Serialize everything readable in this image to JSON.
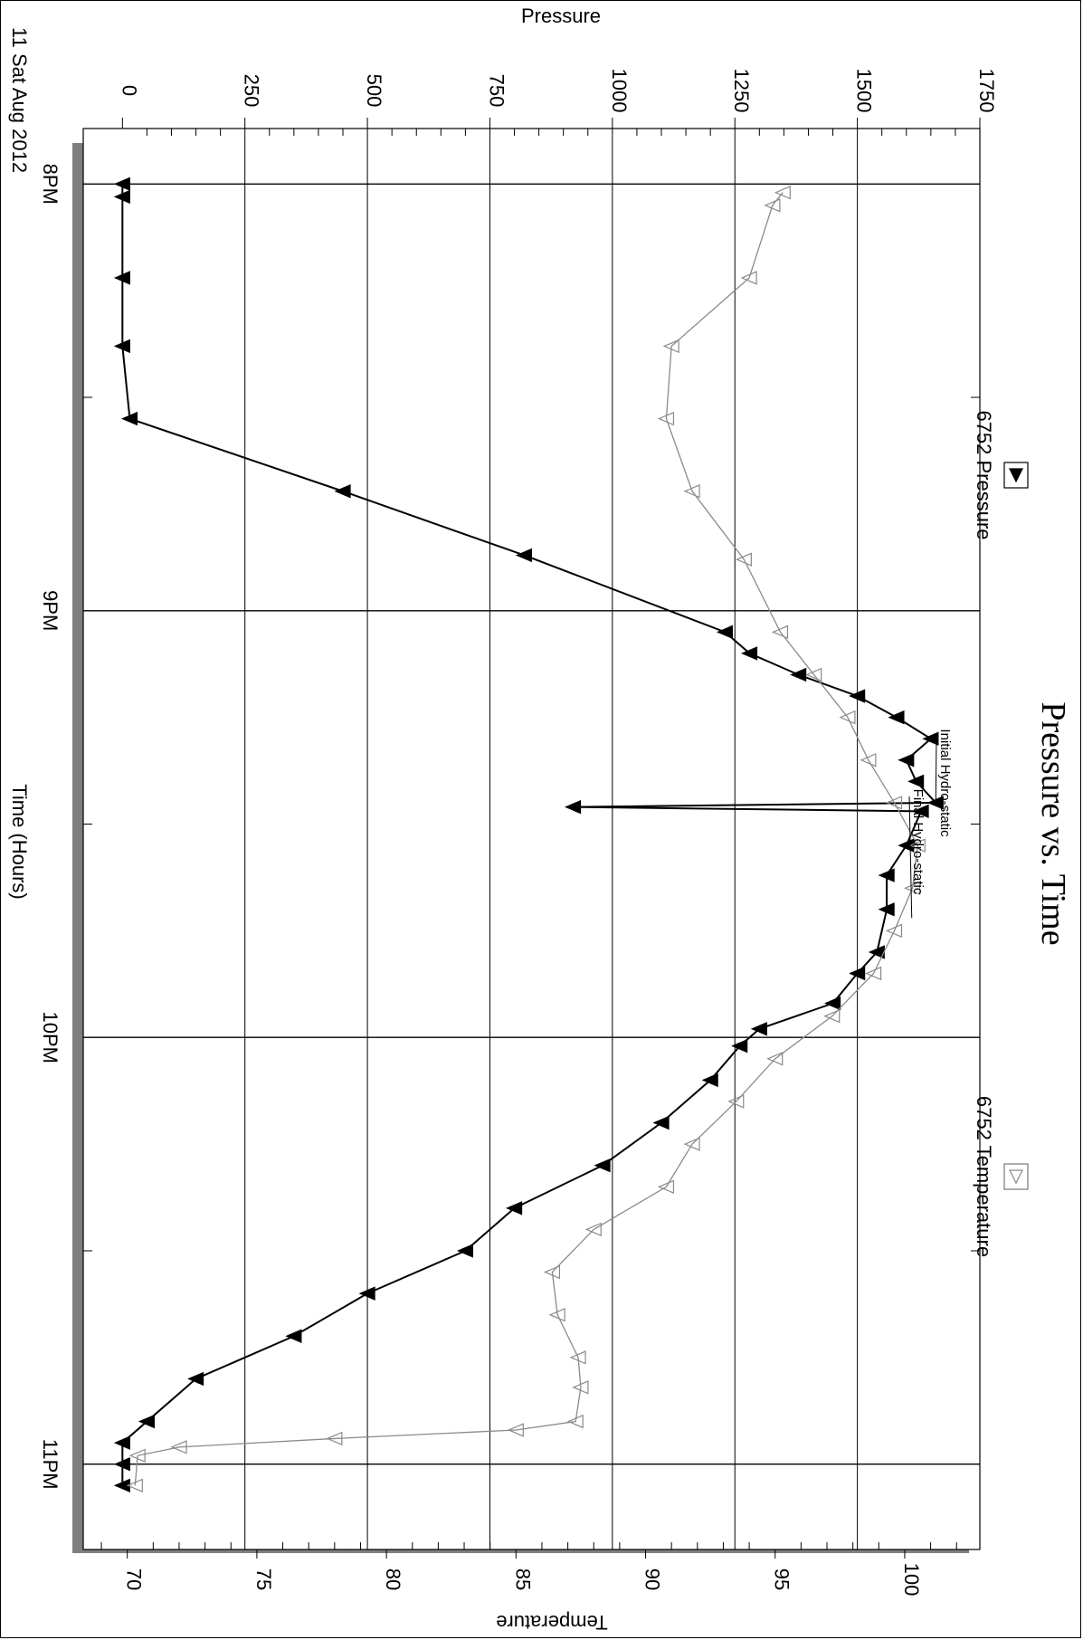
{
  "chart_data": {
    "type": "line",
    "title": "Pressure vs. Time",
    "date_label": "11 Sat Aug 2012",
    "xlabel": "Time (Hours)",
    "ylabel_left": "Pressure",
    "ylabel_right": "Temperature",
    "time_ticks": [
      "8PM",
      "9PM",
      "10PM",
      "11PM"
    ],
    "time_range_hours": [
      19.87,
      23.2
    ],
    "pressure_ticks": [
      "0",
      "250",
      "500",
      "750",
      "1000",
      "1250",
      "1500",
      "1750"
    ],
    "pressure_range": [
      -80,
      1750
    ],
    "temperature_ticks": [
      "70",
      "75",
      "80",
      "85",
      "90",
      "95",
      "100"
    ],
    "temperature_range": [
      68.3,
      102.9
    ],
    "grid": true,
    "legend": [
      {
        "name": "6752 Pressure",
        "marker": "filled-triangle",
        "color": "#000000"
      },
      {
        "name": "6752 Temperature",
        "marker": "open-triangle",
        "color": "#8a8a8a"
      }
    ],
    "annotations": [
      {
        "text": "Initial Hydro-static",
        "time": 21.45,
        "pressure": 1660
      },
      {
        "text": "Final Hydro-static",
        "time": 21.72,
        "pressure": 1611
      }
    ],
    "series": [
      {
        "name": "6752 Pressure",
        "color": "#000000",
        "marker": "filled",
        "points": [
          [
            20.0,
            0
          ],
          [
            20.03,
            0
          ],
          [
            20.22,
            0
          ],
          [
            20.38,
            0
          ],
          [
            20.55,
            15
          ],
          [
            20.72,
            450
          ],
          [
            20.87,
            820
          ],
          [
            21.05,
            1230
          ],
          [
            21.1,
            1280
          ],
          [
            21.15,
            1380
          ],
          [
            21.2,
            1500
          ],
          [
            21.25,
            1580
          ],
          [
            21.3,
            1650
          ],
          [
            21.35,
            1600
          ],
          [
            21.4,
            1620
          ],
          [
            21.45,
            1660
          ],
          [
            21.46,
            920
          ],
          [
            21.47,
            1630
          ],
          [
            21.55,
            1600
          ],
          [
            21.62,
            1560
          ],
          [
            21.7,
            1560
          ],
          [
            21.8,
            1540
          ],
          [
            21.85,
            1500
          ],
          [
            21.92,
            1450
          ],
          [
            21.98,
            1300
          ],
          [
            22.02,
            1260
          ],
          [
            22.1,
            1200
          ],
          [
            22.2,
            1100
          ],
          [
            22.3,
            980
          ],
          [
            22.4,
            800
          ],
          [
            22.5,
            700
          ],
          [
            22.6,
            500
          ],
          [
            22.7,
            350
          ],
          [
            22.8,
            150
          ],
          [
            22.9,
            50
          ],
          [
            22.95,
            0
          ],
          [
            23.0,
            0
          ],
          [
            23.05,
            0
          ]
        ]
      },
      {
        "name": "6752 Temperature",
        "color": "#8a8a8a",
        "marker": "open",
        "points": [
          [
            20.02,
            95.3
          ],
          [
            20.05,
            94.9
          ],
          [
            20.22,
            94.0
          ],
          [
            20.38,
            91.0
          ],
          [
            20.55,
            90.8
          ],
          [
            20.72,
            91.8
          ],
          [
            20.88,
            93.8
          ],
          [
            21.05,
            95.2
          ],
          [
            21.15,
            96.5
          ],
          [
            21.25,
            97.8
          ],
          [
            21.35,
            98.6
          ],
          [
            21.45,
            99.6
          ],
          [
            21.55,
            100.5
          ],
          [
            21.65,
            100.3
          ],
          [
            21.75,
            99.6
          ],
          [
            21.85,
            98.8
          ],
          [
            21.95,
            97.2
          ],
          [
            22.05,
            95.0
          ],
          [
            22.15,
            93.5
          ],
          [
            22.25,
            91.8
          ],
          [
            22.35,
            90.8
          ],
          [
            22.45,
            88.0
          ],
          [
            22.55,
            86.4
          ],
          [
            22.65,
            86.6
          ],
          [
            22.75,
            87.4
          ],
          [
            22.82,
            87.5
          ],
          [
            22.9,
            87.3
          ],
          [
            22.92,
            85.0
          ],
          [
            22.94,
            78.0
          ],
          [
            22.96,
            72.0
          ],
          [
            22.98,
            70.4
          ],
          [
            23.05,
            70.3
          ]
        ]
      }
    ]
  }
}
